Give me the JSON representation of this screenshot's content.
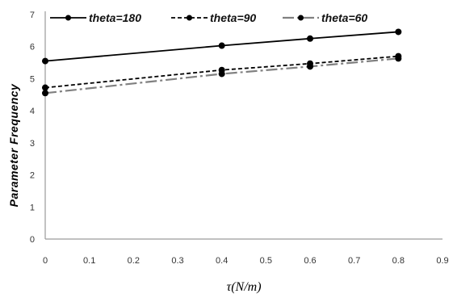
{
  "chart_data": {
    "type": "line",
    "title": "",
    "xlabel": "τ(N/m)",
    "ylabel": "Parameter Frequency",
    "xlim": [
      0,
      0.9
    ],
    "ylim": [
      0,
      7
    ],
    "x_ticks": [
      "0",
      "0.1",
      "0.2",
      "0.3",
      "0.4",
      "0.5",
      "0.6",
      "0.7",
      "0.8",
      "0.9"
    ],
    "y_ticks": [
      "0",
      "1",
      "2",
      "3",
      "4",
      "5",
      "6",
      "7"
    ],
    "grid": false,
    "legend_position": "top",
    "series": [
      {
        "name": "theta=180",
        "style": "solid",
        "color": "#000000",
        "x": [
          0,
          0.4,
          0.6,
          0.8
        ],
        "y": [
          5.55,
          6.03,
          6.25,
          6.46
        ]
      },
      {
        "name": "theta=90",
        "style": "dashed",
        "color": "#000000",
        "x": [
          0,
          0.4,
          0.6,
          0.8
        ],
        "y": [
          4.72,
          5.27,
          5.47,
          5.7
        ]
      },
      {
        "name": "theta=60",
        "style": "dashdot",
        "color": "#808080",
        "x": [
          0,
          0.4,
          0.6,
          0.8
        ],
        "y": [
          4.55,
          5.15,
          5.38,
          5.63
        ]
      }
    ]
  }
}
